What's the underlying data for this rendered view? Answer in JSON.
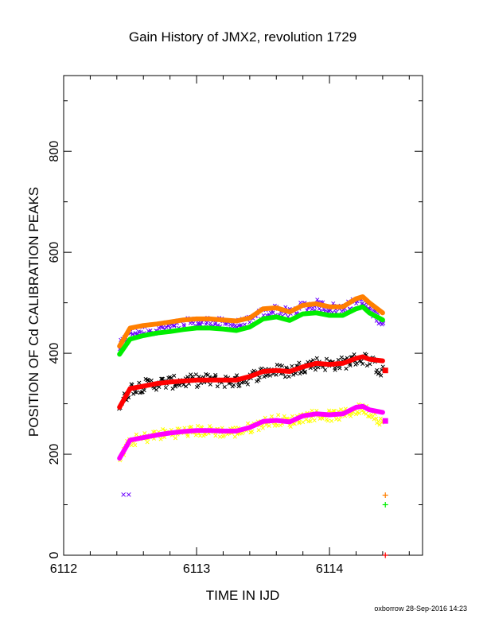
{
  "chart_data": {
    "type": "scatter",
    "title": "Gain History of JMX2, revolution 1729",
    "xlabel": "TIME IN IJD",
    "ylabel": "POSITION OF Cd CALIBRATION PEAKS",
    "xlim": [
      6112,
      6114.7
    ],
    "ylim": [
      0,
      950
    ],
    "x_ticks": [
      6112,
      6113,
      6114
    ],
    "y_ticks": [
      0,
      200,
      400,
      600,
      800
    ],
    "grid": false,
    "footer": "oxborrow 28-Sep-2016 14:23",
    "curve_x": [
      6112.42,
      6112.5,
      6112.6,
      6112.7,
      6112.8,
      6112.9,
      6113.0,
      6113.1,
      6113.2,
      6113.3,
      6113.4,
      6113.5,
      6113.6,
      6113.7,
      6113.8,
      6113.9,
      6114.0,
      6114.1,
      6114.2,
      6114.25,
      6114.3,
      6114.4
    ],
    "series": [
      {
        "kind": "scatter",
        "color": "#6a00ff",
        "center": [
          412,
          440,
          444,
          450,
          452,
          458,
          460,
          462,
          458,
          456,
          462,
          480,
          486,
          478,
          492,
          496,
          490,
          488,
          500,
          498,
          488,
          462
        ],
        "spread": 22
      },
      {
        "kind": "curve",
        "color": "#ff7f00",
        "values": [
          414,
          450,
          455,
          458,
          462,
          466,
          468,
          468,
          466,
          464,
          470,
          488,
          490,
          482,
          495,
          498,
          492,
          492,
          508,
          512,
          500,
          480
        ]
      },
      {
        "kind": "curve",
        "color": "#00ee00",
        "values": [
          398,
          428,
          435,
          440,
          443,
          447,
          450,
          450,
          448,
          445,
          452,
          468,
          472,
          465,
          478,
          480,
          475,
          475,
          488,
          492,
          480,
          466
        ]
      },
      {
        "kind": "scatter",
        "color": "#000000",
        "center": [
          292,
          330,
          336,
          340,
          342,
          344,
          346,
          347,
          345,
          344,
          352,
          362,
          366,
          364,
          374,
          380,
          378,
          380,
          388,
          390,
          386,
          362
        ],
        "spread": 26
      },
      {
        "kind": "curve",
        "color": "#ff0000",
        "values": [
          293,
          330,
          335,
          340,
          343,
          345,
          347,
          347,
          347,
          347,
          354,
          364,
          366,
          364,
          373,
          380,
          378,
          380,
          390,
          393,
          388,
          385
        ]
      },
      {
        "kind": "scatter",
        "color": "#ffff00",
        "center": [
          190,
          226,
          232,
          238,
          242,
          244,
          246,
          246,
          244,
          244,
          252,
          262,
          268,
          264,
          274,
          278,
          276,
          278,
          288,
          290,
          284,
          264
        ],
        "spread": 22
      },
      {
        "kind": "curve",
        "color": "#ff00ff",
        "values": [
          192,
          228,
          233,
          238,
          242,
          245,
          247,
          247,
          246,
          246,
          253,
          265,
          267,
          264,
          276,
          280,
          278,
          280,
          293,
          295,
          288,
          283
        ]
      }
    ],
    "end_markers": [
      {
        "color": "#ff0000",
        "symbol": "square",
        "x": 6114.42,
        "y": 366
      },
      {
        "color": "#ff00ff",
        "symbol": "square",
        "x": 6114.42,
        "y": 266
      },
      {
        "color": "#ff7f00",
        "symbol": "plus",
        "x": 6114.42,
        "y": 119
      },
      {
        "color": "#00ee00",
        "symbol": "plus",
        "x": 6114.42,
        "y": 100
      },
      {
        "color": "#6a00ff",
        "symbol": "cross",
        "x": 6112.45,
        "y": 120
      },
      {
        "color": "#6a00ff",
        "symbol": "cross",
        "x": 6112.49,
        "y": 120
      },
      {
        "color": "#ff0000",
        "symbol": "plus",
        "x": 6114.42,
        "y": 0
      }
    ]
  }
}
